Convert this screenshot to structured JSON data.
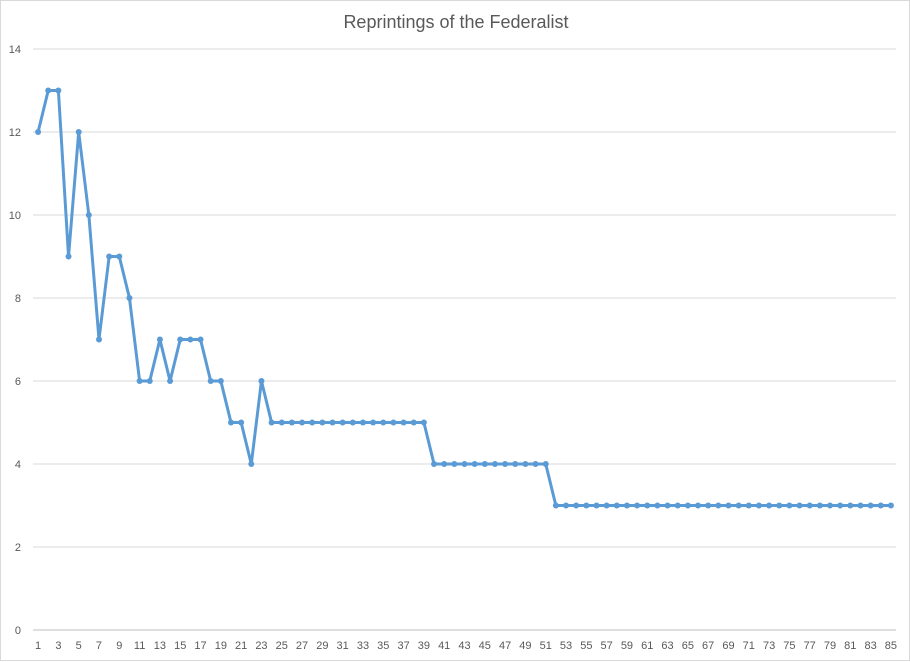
{
  "chart_data": {
    "type": "line",
    "title": "Reprintings of the Federalist",
    "xlabel": "",
    "ylabel": "",
    "x": [
      1,
      2,
      3,
      4,
      5,
      6,
      7,
      8,
      9,
      10,
      11,
      12,
      13,
      14,
      15,
      16,
      17,
      18,
      19,
      20,
      21,
      22,
      23,
      24,
      25,
      26,
      27,
      28,
      29,
      30,
      31,
      32,
      33,
      34,
      35,
      36,
      37,
      38,
      39,
      40,
      41,
      42,
      43,
      44,
      45,
      46,
      47,
      48,
      49,
      50,
      51,
      52,
      53,
      54,
      55,
      56,
      57,
      58,
      59,
      60,
      61,
      62,
      63,
      64,
      65,
      66,
      67,
      68,
      69,
      70,
      71,
      72,
      73,
      74,
      75,
      76,
      77,
      78,
      79,
      80,
      81,
      82,
      83,
      84,
      85
    ],
    "x_tick_labels": [
      "1",
      "3",
      "5",
      "7",
      "9",
      "11",
      "13",
      "15",
      "17",
      "19",
      "21",
      "23",
      "25",
      "27",
      "29",
      "31",
      "33",
      "35",
      "37",
      "39",
      "41",
      "43",
      "45",
      "47",
      "49",
      "51",
      "53",
      "55",
      "57",
      "59",
      "61",
      "63",
      "65",
      "67",
      "69",
      "71",
      "73",
      "75",
      "77",
      "79",
      "81",
      "83",
      "85"
    ],
    "series": [
      {
        "values": [
          12,
          13,
          13,
          9,
          12,
          10,
          7,
          9,
          9,
          8,
          6,
          6,
          7,
          6,
          7,
          7,
          7,
          6,
          6,
          5,
          5,
          4,
          6,
          5,
          5,
          5,
          5,
          5,
          5,
          5,
          5,
          5,
          5,
          5,
          5,
          5,
          5,
          5,
          5,
          4,
          4,
          4,
          4,
          4,
          4,
          4,
          4,
          4,
          4,
          4,
          4,
          3,
          3,
          3,
          3,
          3,
          3,
          3,
          3,
          3,
          3,
          3,
          3,
          3,
          3,
          3,
          3,
          3,
          3,
          3,
          3,
          3,
          3,
          3,
          3,
          3,
          3,
          3,
          3,
          3,
          3,
          3,
          3,
          3,
          3
        ],
        "color": "#5b9bd5"
      }
    ],
    "ylim": [
      0,
      14
    ],
    "y_ticks": [
      "0",
      "2",
      "4",
      "6",
      "8",
      "10",
      "12",
      "14"
    ],
    "grid": true,
    "legend": "none"
  }
}
